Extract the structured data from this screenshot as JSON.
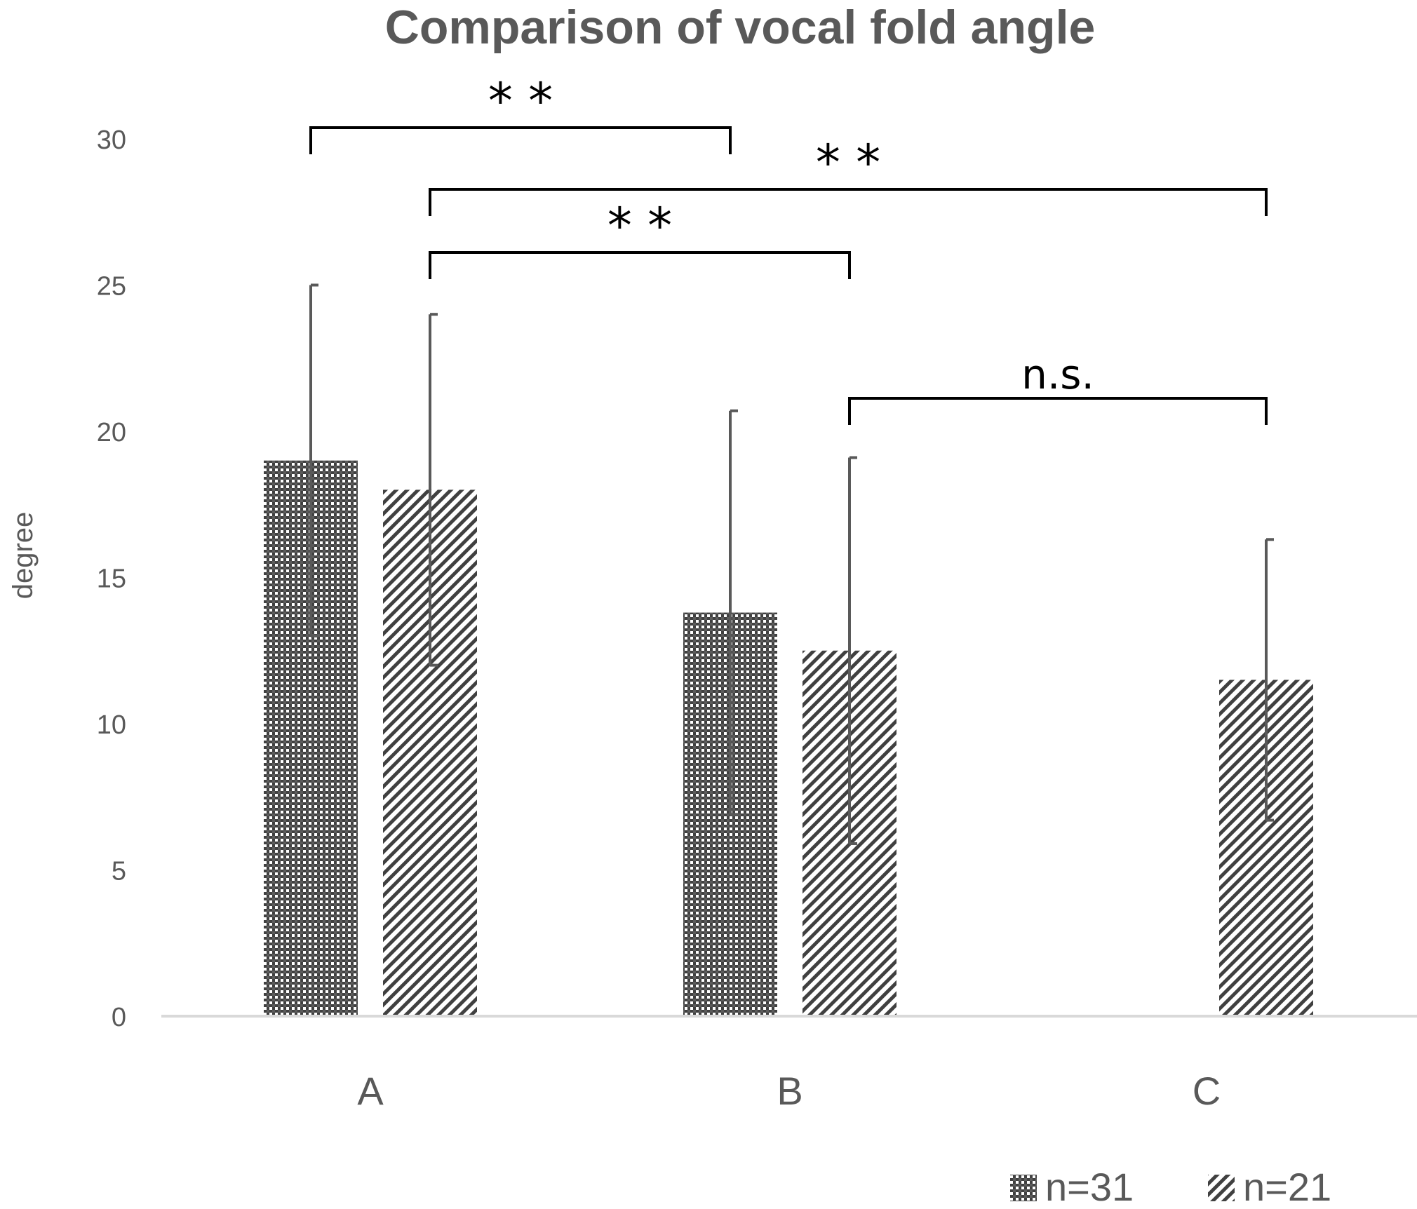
{
  "chart_data": {
    "type": "bar",
    "title": "Comparison of vocal fold angle",
    "ylabel": "degree",
    "xlabel": "",
    "ylim": [
      0,
      30
    ],
    "yticks": [
      "0",
      "5",
      "10",
      "15",
      "20",
      "25",
      "30"
    ],
    "categories": [
      "A",
      "B",
      "C"
    ],
    "series": [
      {
        "name": "n=31",
        "pattern": "checker",
        "values": [
          19.0,
          13.8,
          null
        ],
        "error": [
          6.0,
          6.9,
          null
        ]
      },
      {
        "name": "n=21",
        "pattern": "diagonal",
        "values": [
          18.0,
          12.5,
          11.5
        ],
        "error": [
          6.0,
          6.6,
          4.8
        ]
      }
    ],
    "significance": [
      {
        "from": [
          0,
          0
        ],
        "to": [
          1,
          0
        ],
        "label": "* *"
      },
      {
        "from": [
          0,
          1
        ],
        "to": [
          2,
          1
        ],
        "label": "* *"
      },
      {
        "from": [
          0,
          1
        ],
        "to": [
          1,
          1
        ],
        "label": "* *"
      },
      {
        "from": [
          1,
          1
        ],
        "to": [
          2,
          1
        ],
        "label": "n.s."
      }
    ],
    "legend_position": "bottom-right",
    "grid": false
  },
  "colors": {
    "bar": "#404040",
    "text": "#595959",
    "axis": "#d9d9d9",
    "bracket": "#000000",
    "errorbar": "#595959"
  }
}
